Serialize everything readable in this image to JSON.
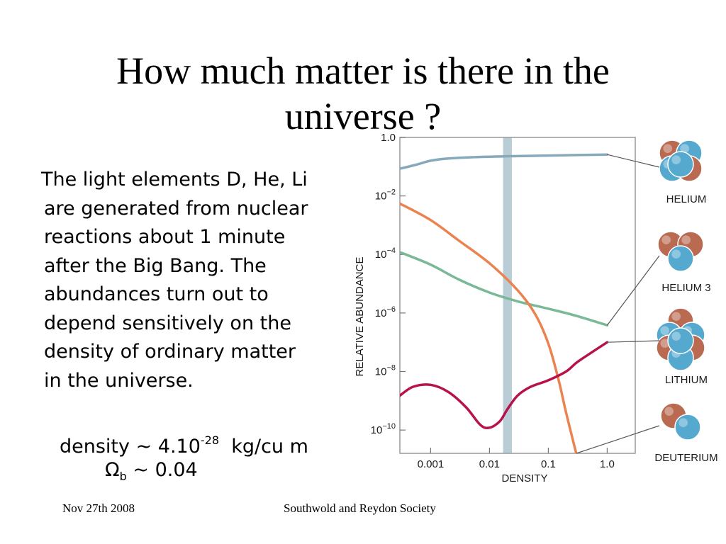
{
  "slide": {
    "title_line1": "How much matter is there in the",
    "title_line2": "universe ?",
    "body_lines": [
      "The light elements D, He, Li",
      "are generated from nuclear",
      "reactions about 1 minute",
      "after the Big Bang.  The",
      "abundances turn out to",
      "depend sensitively on the",
      "density of ordinary matter",
      "in the universe."
    ],
    "density_prefix": "density ~ 4.10",
    "density_exponent": "-28",
    "density_unit": "kg/cu m",
    "omega_symbol": "Ω",
    "omega_subscript": "b",
    "omega_value": "~ 0.04",
    "footer_date": "Nov 27th  2008",
    "footer_org": "Southwold and Reydon Society"
  },
  "chart_data": {
    "type": "line",
    "xlabel": "DENSITY",
    "ylabel": "RELATIVE ABUNDANCE",
    "x_scale": "log",
    "y_scale": "log",
    "xlim": [
      0.0003,
      3.0
    ],
    "ylim": [
      1.6e-11,
      1.0
    ],
    "x_ticks": [
      0.001,
      0.01,
      0.1,
      1.0
    ],
    "x_tick_labels": [
      "0.001",
      "0.01",
      "0.1",
      "1.0"
    ],
    "y_ticks": [
      1.0,
      0.01,
      0.0001,
      1e-06,
      1e-08,
      1e-10
    ],
    "y_tick_labels": [
      {
        "base": "1.0",
        "exp": ""
      },
      {
        "base": "10",
        "exp": "−2"
      },
      {
        "base": "10",
        "exp": "−4"
      },
      {
        "base": "10",
        "exp": "−6"
      },
      {
        "base": "10",
        "exp": "−8"
      },
      {
        "base": "10",
        "exp": "−10"
      }
    ],
    "band": {
      "x_range": [
        0.017,
        0.024
      ],
      "color": "#b9cdd6"
    },
    "series": [
      {
        "name": "HELIUM",
        "color": "#86aabb",
        "x": [
          0.0003,
          0.0006,
          0.001,
          0.002,
          0.005,
          0.01,
          0.03,
          0.1,
          0.3,
          1.0
        ],
        "y": [
          0.085,
          0.12,
          0.16,
          0.19,
          0.21,
          0.22,
          0.23,
          0.24,
          0.25,
          0.26
        ]
      },
      {
        "name": "HELIUM 3",
        "color": "#7ab896",
        "x": [
          0.0003,
          0.001,
          0.003,
          0.01,
          0.03,
          0.1,
          0.3,
          1.0
        ],
        "y": [
          0.00012,
          4.5e-05,
          1.4e-05,
          5e-06,
          2.5e-06,
          1.4e-06,
          8e-07,
          3.8e-07
        ]
      },
      {
        "name": "DEUTERIUM",
        "color": "#ea8350",
        "x": [
          0.0003,
          0.001,
          0.003,
          0.01,
          0.03,
          0.06,
          0.1,
          0.15,
          0.2,
          0.3
        ],
        "y": [
          0.0055,
          0.0015,
          0.0003,
          5e-05,
          6e-06,
          9e-07,
          9e-08,
          5e-09,
          4e-10,
          1.5e-11
        ]
      },
      {
        "name": "LITHIUM",
        "color": "#b8124a",
        "x": [
          0.0003,
          0.0005,
          0.001,
          0.002,
          0.004,
          0.007,
          0.01,
          0.015,
          0.02,
          0.03,
          0.05,
          0.1,
          0.2,
          0.3,
          0.5,
          1.0
        ],
        "y": [
          1.5e-09,
          3e-09,
          3.5e-09,
          2e-09,
          6e-10,
          1.5e-10,
          1.2e-10,
          2e-10,
          5e-10,
          1.5e-09,
          3e-09,
          5e-09,
          1e-08,
          2e-08,
          4e-08,
          1e-07
        ]
      }
    ],
    "atoms": [
      {
        "label": "HELIUM",
        "series": "HELIUM"
      },
      {
        "label": "HELIUM 3",
        "series": "HELIUM 3"
      },
      {
        "label": "LITHIUM",
        "series": "LITHIUM"
      },
      {
        "label": "DEUTERIUM",
        "series": "DEUTERIUM"
      }
    ],
    "colors": {
      "proton": "#b96a50",
      "neutron": "#55a9cf",
      "frame": "#9a9a9a"
    }
  }
}
